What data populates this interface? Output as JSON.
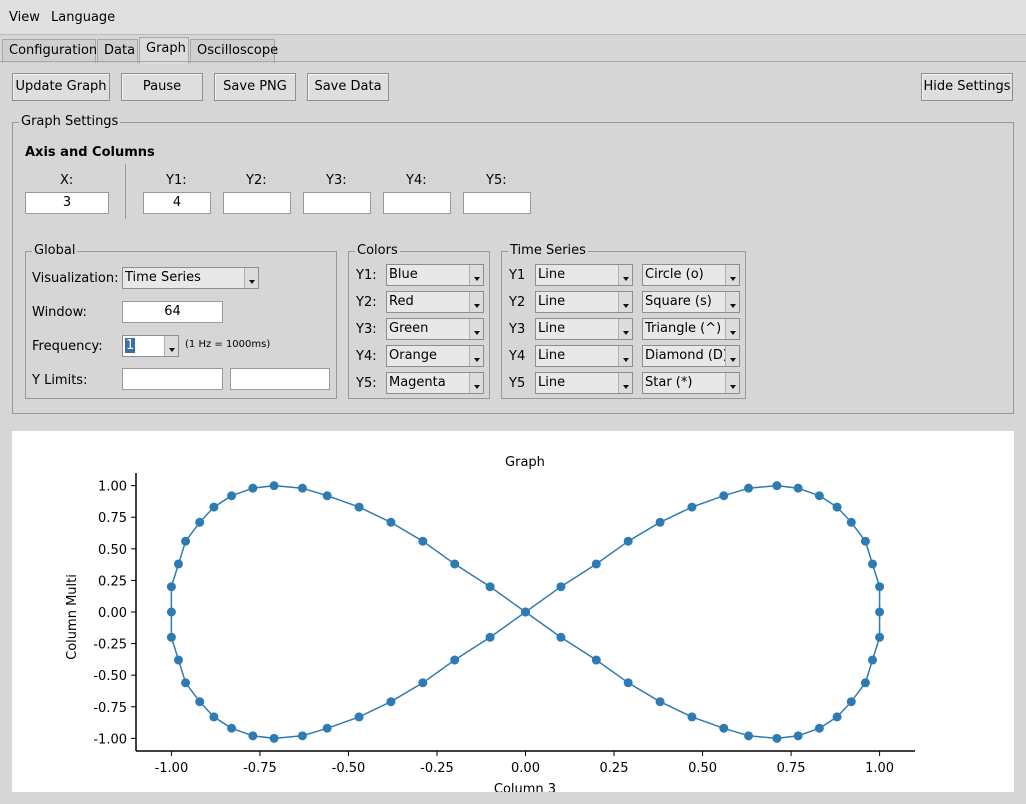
{
  "menu": {
    "view": "View",
    "language": "Language"
  },
  "tabs": [
    "Configuration",
    "Data",
    "Graph",
    "Oscilloscope"
  ],
  "toolbar": {
    "update": "Update Graph",
    "pause": "Pause",
    "save_png": "Save PNG",
    "save_data": "Save Data",
    "hide": "Hide Settings"
  },
  "settings": {
    "title": "Graph Settings",
    "axis_title": "Axis and Columns",
    "x_label": "X:",
    "x_value": "3",
    "y_labels": [
      "Y1:",
      "Y2:",
      "Y3:",
      "Y4:",
      "Y5:"
    ],
    "y_values": [
      "4",
      "",
      "",
      "",
      ""
    ]
  },
  "global": {
    "title": "Global",
    "visualization_label": "Visualization:",
    "visualization_value": "Time Series",
    "window_label": "Window:",
    "window_value": "64",
    "frequency_label": "Frequency:",
    "frequency_value": "1",
    "frequency_hint": "(1 Hz = 1000ms)",
    "ylimits_label": "Y Limits:",
    "ylim_min": "",
    "ylim_max": ""
  },
  "colors": {
    "title": "Colors",
    "labels": [
      "Y1:",
      "Y2:",
      "Y3:",
      "Y4:",
      "Y5:"
    ],
    "values": [
      "Blue",
      "Red",
      "Green",
      "Orange",
      "Magenta"
    ]
  },
  "timeseries": {
    "title": "Time Series",
    "labels": [
      "Y1",
      "Y2",
      "Y3",
      "Y4",
      "Y5"
    ],
    "styles": [
      "Line",
      "Line",
      "Line",
      "Line",
      "Line"
    ],
    "markers": [
      "Circle (o)",
      "Square (s)",
      "Triangle (^)",
      "Diamond (D)",
      "Star (*)"
    ]
  },
  "chart_data": {
    "type": "line",
    "title": "Graph",
    "xlabel": "Column 3",
    "ylabel": "Column Multi",
    "xlim": [
      -1.1,
      1.1
    ],
    "ylim": [
      -1.1,
      1.1
    ],
    "xticks": [
      "-1.00",
      "-0.75",
      "-0.50",
      "-0.25",
      "0.00",
      "0.25",
      "0.50",
      "0.75",
      "1.00"
    ],
    "yticks": [
      "1.00",
      "0.75",
      "0.50",
      "0.25",
      "0.00",
      "-0.25",
      "-0.50",
      "-0.75",
      "-1.00"
    ],
    "series": [
      {
        "color": "#2e7bb4",
        "marker": "circle",
        "x": [
          0.0,
          0.1,
          0.2,
          0.29,
          0.38,
          0.47,
          0.56,
          0.63,
          0.71,
          0.77,
          0.83,
          0.88,
          0.92,
          0.96,
          0.98,
          1.0,
          1.0,
          1.0,
          0.98,
          0.96,
          0.92,
          0.88,
          0.83,
          0.77,
          0.71,
          0.63,
          0.56,
          0.47,
          0.38,
          0.29,
          0.2,
          0.1,
          0.0,
          -0.1,
          -0.2,
          -0.29,
          -0.38,
          -0.47,
          -0.56,
          -0.63,
          -0.71,
          -0.77,
          -0.83,
          -0.88,
          -0.92,
          -0.96,
          -0.98,
          -1.0,
          -1.0,
          -1.0,
          -0.98,
          -0.96,
          -0.92,
          -0.88,
          -0.83,
          -0.77,
          -0.71,
          -0.63,
          -0.56,
          -0.47,
          -0.38,
          -0.29,
          -0.2,
          -0.1
        ],
        "y": [
          0.0,
          0.2,
          0.38,
          0.56,
          0.71,
          0.83,
          0.92,
          0.98,
          1.0,
          0.98,
          0.92,
          0.83,
          0.71,
          0.56,
          0.38,
          0.2,
          0.0,
          -0.2,
          -0.38,
          -0.56,
          -0.71,
          -0.83,
          -0.92,
          -0.98,
          -1.0,
          -0.98,
          -0.92,
          -0.83,
          -0.71,
          -0.56,
          -0.38,
          -0.2,
          0.0,
          0.2,
          0.38,
          0.56,
          0.71,
          0.83,
          0.92,
          0.98,
          1.0,
          0.98,
          0.92,
          0.83,
          0.71,
          0.56,
          0.38,
          0.2,
          0.0,
          -0.2,
          -0.38,
          -0.56,
          -0.71,
          -0.83,
          -0.92,
          -0.98,
          -1.0,
          -0.98,
          -0.92,
          -0.83,
          -0.71,
          -0.56,
          -0.38,
          -0.2
        ]
      }
    ]
  }
}
